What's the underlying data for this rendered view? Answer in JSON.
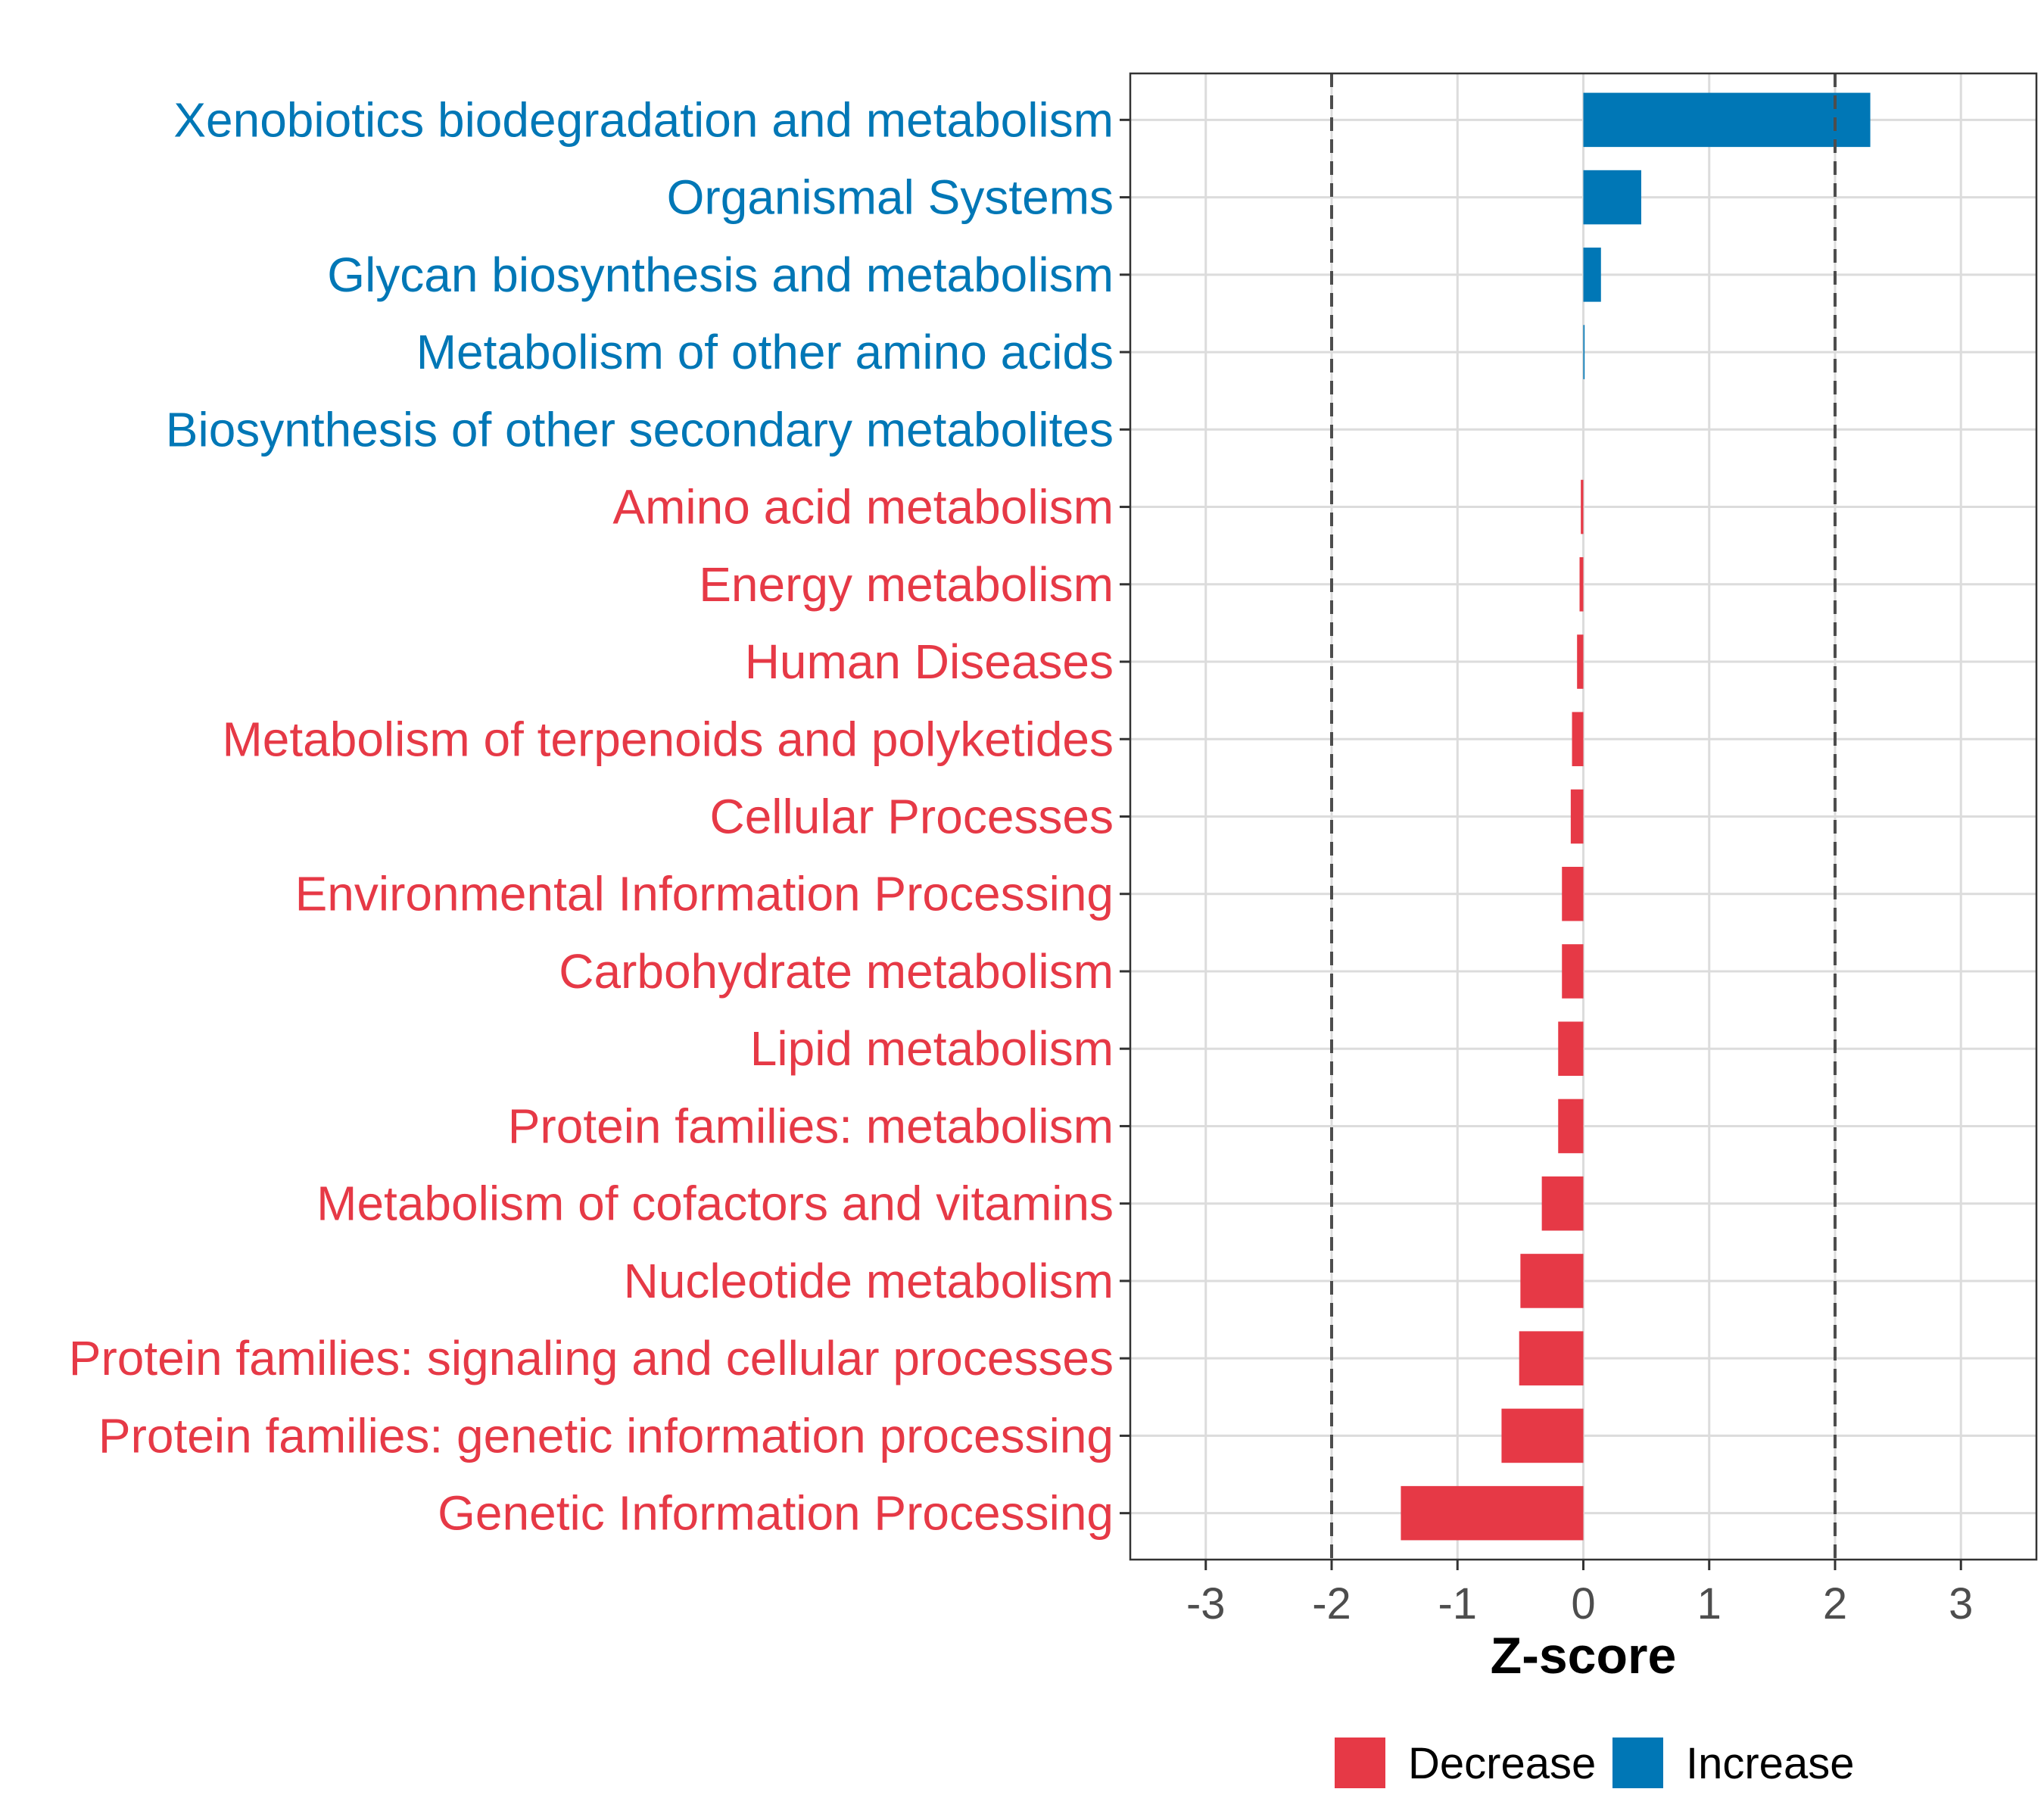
{
  "chart_data": {
    "type": "bar",
    "orientation": "horizontal",
    "title": "",
    "xlabel": "Z-score",
    "ylabel": "",
    "xlim": [
      -3.6,
      3.6
    ],
    "xticks": [
      -3,
      -2,
      -1,
      0,
      1,
      2,
      3
    ],
    "reference_lines": [
      -2,
      2
    ],
    "grid": true,
    "legend_position": "bottom",
    "categories": [
      "Xenobiotics biodegradation and metabolism",
      "Organismal Systems",
      "Glycan biosynthesis and metabolism",
      "Metabolism of other amino acids",
      "Biosynthesis of other secondary metabolites",
      "Amino acid metabolism",
      "Energy metabolism",
      "Human Diseases",
      "Metabolism of terpenoids and polyketides",
      "Cellular Processes",
      "Environmental Information Processing",
      "Carbohydrate metabolism",
      "Lipid metabolism",
      "Protein families: metabolism",
      "Metabolism of cofactors and vitamins",
      "Nucleotide metabolism",
      "Protein families: signaling and cellular processes",
      "Protein families: genetic information processing",
      "Genetic Information Processing"
    ],
    "values": [
      2.28,
      0.46,
      0.14,
      0.01,
      0.0,
      -0.02,
      -0.03,
      -0.05,
      -0.09,
      -0.1,
      -0.17,
      -0.17,
      -0.2,
      -0.2,
      -0.33,
      -0.5,
      -0.51,
      -0.65,
      -1.45
    ],
    "groups": [
      "Increase",
      "Increase",
      "Increase",
      "Increase",
      "Increase",
      "Decrease",
      "Decrease",
      "Decrease",
      "Decrease",
      "Decrease",
      "Decrease",
      "Decrease",
      "Decrease",
      "Decrease",
      "Decrease",
      "Decrease",
      "Decrease",
      "Decrease",
      "Decrease"
    ],
    "legend": [
      {
        "name": "Decrease",
        "color": "#e63946"
      },
      {
        "name": "Increase",
        "color": "#0077b6"
      }
    ]
  }
}
